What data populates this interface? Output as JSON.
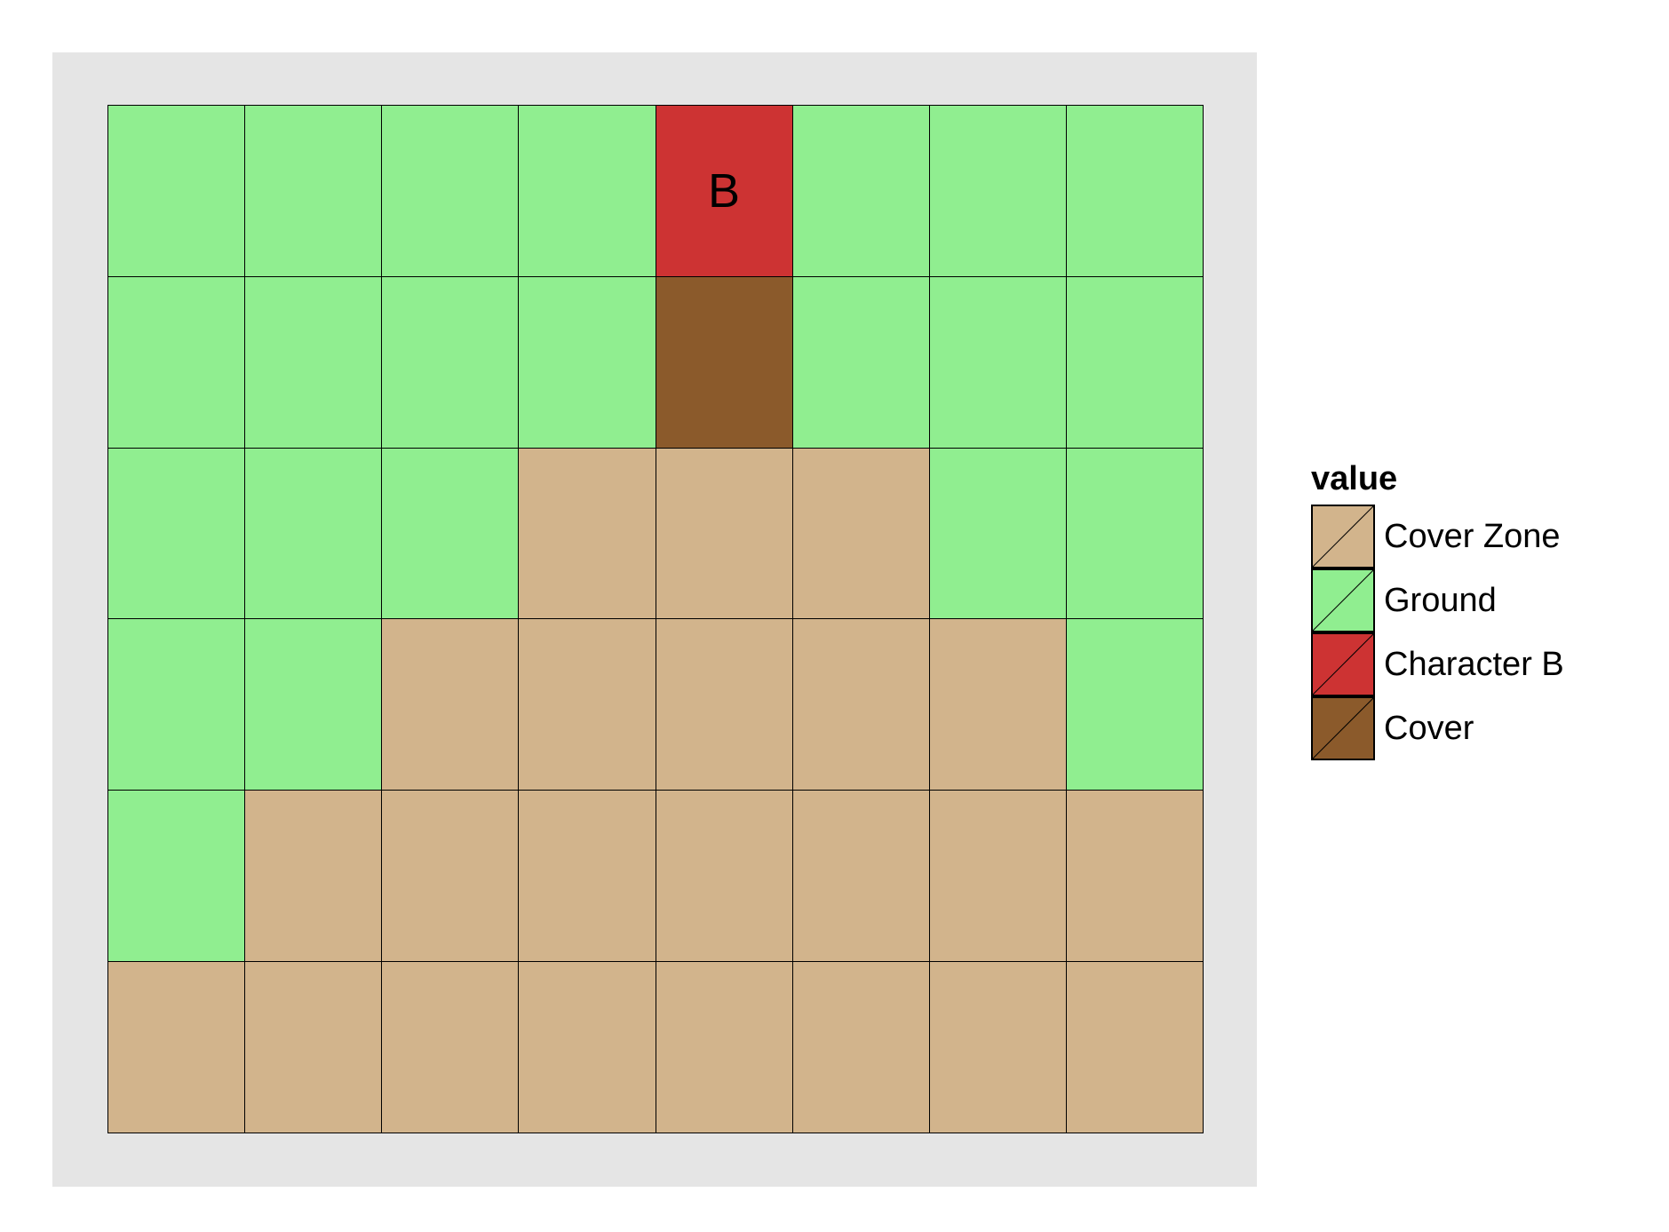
{
  "board": {
    "columns": 8,
    "rows": 6,
    "cells": [
      [
        "ground",
        "ground",
        "ground",
        "ground",
        "character_b",
        "ground",
        "ground",
        "ground"
      ],
      [
        "ground",
        "ground",
        "ground",
        "ground",
        "cover",
        "ground",
        "ground",
        "ground"
      ],
      [
        "ground",
        "ground",
        "ground",
        "cover_zone",
        "cover_zone",
        "cover_zone",
        "ground",
        "ground"
      ],
      [
        "ground",
        "ground",
        "cover_zone",
        "cover_zone",
        "cover_zone",
        "cover_zone",
        "cover_zone",
        "ground"
      ],
      [
        "ground",
        "cover_zone",
        "cover_zone",
        "cover_zone",
        "cover_zone",
        "cover_zone",
        "cover_zone",
        "cover_zone"
      ],
      [
        "cover_zone",
        "cover_zone",
        "cover_zone",
        "cover_zone",
        "cover_zone",
        "cover_zone",
        "cover_zone",
        "cover_zone"
      ]
    ],
    "cell_labels": {
      "character_b": "B"
    }
  },
  "palette": {
    "ground": "#90ee90",
    "cover_zone": "#d2b48c",
    "character_b": "#cd3333",
    "cover": "#8b5a2b"
  },
  "legend": {
    "title": "value",
    "items": [
      {
        "key": "cover_zone",
        "label": "Cover Zone"
      },
      {
        "key": "ground",
        "label": "Ground"
      },
      {
        "key": "character_b",
        "label": "Character B"
      },
      {
        "key": "cover",
        "label": "Cover"
      }
    ]
  }
}
